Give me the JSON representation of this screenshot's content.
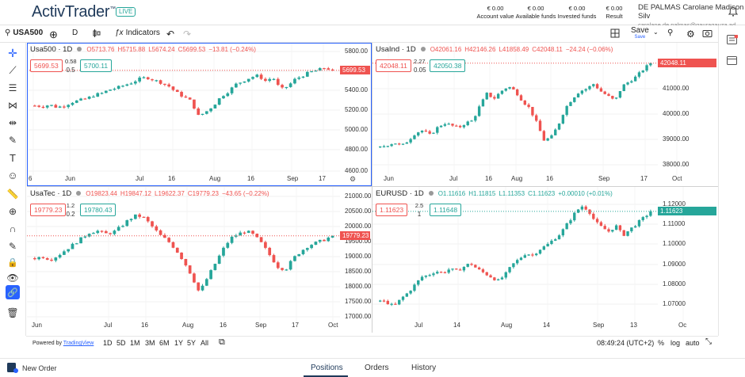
{
  "header": {
    "logo": "ActivTrader",
    "tm": "™",
    "live": "LIVE",
    "stats": [
      {
        "value": "€ 0.00",
        "label": "Account value"
      },
      {
        "value": "€ 0.00",
        "label": "Available funds"
      },
      {
        "value": "€ 0.00",
        "label": "Invested funds"
      },
      {
        "value": "€ 0.00",
        "label": "Result"
      }
    ],
    "user_name": "DE PALMAS Carolane Madison Silv",
    "user_email": "carolane.de.palmas@gauragauza.ad"
  },
  "toolbar": {
    "symbol": "USA500",
    "interval": "D",
    "indicators": "Indicators",
    "save": "Save",
    "save_sub": "Save"
  },
  "panels": [
    {
      "name": "Usa500 · 1D",
      "o": "O5713.76",
      "h": "H5715.88",
      "l": "L5674.24",
      "c": "C5699.53",
      "chg": "−13.81 (−0.24%)",
      "chg_color": "#ef5350",
      "bid": "5699.53",
      "spread_top": "0.58",
      "spread_bot": "0.5",
      "ask": "5700.11",
      "last": "5699.53",
      "last_color": "#ef5350",
      "yticks": [
        "5800.00",
        "5600.00",
        "5400.00",
        "5200.00",
        "5000.00",
        "4800.00",
        "4600.00"
      ],
      "xticks": [
        "Jun",
        "Jul",
        "16",
        "Aug",
        "16",
        "Sep",
        "17"
      ],
      "partial": "6"
    },
    {
      "name": "UsaInd · 1D",
      "o": "O42061.16",
      "h": "H42146.26",
      "l": "L41858.49",
      "c": "C42048.11",
      "chg": "−24.24 (−0.06%)",
      "chg_color": "#ef5350",
      "bid": "42048.11",
      "spread_top": "2.27",
      "spread_bot": "0.05",
      "ask": "42050.38",
      "last": "42048.11",
      "last_color": "#ef5350",
      "yticks": [
        "41000.00",
        "40000.00",
        "39000.00",
        "38000.00"
      ],
      "xticks": [
        "Jun",
        "Jul",
        "16",
        "Aug",
        "16",
        "Sep",
        "17",
        "Oct"
      ]
    },
    {
      "name": "UsaTec · 1D",
      "o": "O19823.44",
      "h": "H19847.12",
      "l": "L19622.37",
      "c": "C19779.23",
      "chg": "−43.65 (−0.22%)",
      "chg_color": "#ef5350",
      "bid": "19779.23",
      "spread_top": "1.2",
      "spread_bot": "0.2",
      "ask": "19780.43",
      "last": "19779.23",
      "last_color": "#ef5350",
      "yticks": [
        "21000.00",
        "20500.00",
        "20000.00",
        "19500.00",
        "19000.00",
        "18500.00",
        "18000.00",
        "17500.00",
        "17000.00"
      ],
      "xticks": [
        "Jun",
        "Jul",
        "16",
        "Aug",
        "16",
        "Sep",
        "17",
        "Oct"
      ]
    },
    {
      "name": "EURUSD · 1D",
      "o": "O1.11616",
      "h": "H1.11815",
      "l": "L1.11353",
      "c": "C1.11623",
      "chg": "+0.00010 (+0.01%)",
      "chg_color": "#26a69a",
      "bid": "1.11623",
      "spread_top": "2.5",
      "spread_bot": "1",
      "ask": "1.11648",
      "last": "1.11623",
      "last_color": "#26a69a",
      "yticks": [
        "1.12000",
        "1.11000",
        "1.10000",
        "1.09000",
        "1.08000",
        "1.07000"
      ],
      "xticks": [
        "Jul",
        "14",
        "Aug",
        "14",
        "Sep",
        "13",
        "Oc"
      ]
    }
  ],
  "chart_data": [
    {
      "type": "candlestick",
      "title": "Usa500 · 1D",
      "y_ticks": [
        5800,
        5600,
        5400,
        5200,
        5000,
        4800,
        4600
      ],
      "ylim": [
        4550,
        5850
      ],
      "last": 5699.53,
      "x_ticks": [
        "Jun",
        "Jul",
        "16",
        "Aug",
        "16",
        "Sep",
        "17"
      ],
      "close_path": [
        5300,
        5290,
        5310,
        5280,
        5300,
        5340,
        5360,
        5380,
        5420,
        5440,
        5480,
        5500,
        5530,
        5560,
        5600,
        5620,
        5590,
        5560,
        5520,
        5450,
        5400,
        5350,
        5180,
        5230,
        5300,
        5400,
        5460,
        5540,
        5580,
        5620,
        5640,
        5580,
        5620,
        5480,
        5520,
        5600,
        5640,
        5680,
        5700,
        5730,
        5700
      ]
    },
    {
      "type": "candlestick",
      "title": "UsaInd · 1D",
      "y_ticks": [
        41000,
        40000,
        39000,
        38000
      ],
      "ylim": [
        37600,
        42300
      ],
      "last": 42048.11,
      "x_ticks": [
        "Jun",
        "Jul",
        "16",
        "Aug",
        "16",
        "Sep",
        "17",
        "Oct"
      ],
      "close_path": [
        38600,
        38700,
        38800,
        38650,
        38900,
        39200,
        39300,
        39100,
        39400,
        39600,
        39500,
        39400,
        39600,
        39700,
        40300,
        40800,
        40600,
        40900,
        41100,
        40900,
        40500,
        40200,
        39600,
        38900,
        39000,
        39500,
        40200,
        40600,
        40900,
        41000,
        41200,
        40900,
        40700,
        40500,
        41100,
        41300,
        41500,
        41800,
        42050
      ]
    },
    {
      "type": "candlestick",
      "title": "UsaTec · 1D",
      "y_ticks": [
        21000,
        20500,
        20000,
        19500,
        19000,
        18500,
        18000,
        17500,
        17000
      ],
      "ylim": [
        16900,
        21100
      ],
      "last": 19779.23,
      "x_ticks": [
        "Jun",
        "Jul",
        "16",
        "Aug",
        "16",
        "Sep",
        "17",
        "Oct"
      ],
      "close_path": [
        19000,
        19050,
        18950,
        19100,
        19300,
        19500,
        19700,
        19900,
        19950,
        19850,
        19900,
        20100,
        20350,
        20500,
        20400,
        20100,
        19800,
        19600,
        19300,
        18900,
        18400,
        17800,
        18300,
        18800,
        19300,
        19700,
        19850,
        19950,
        19800,
        19500,
        19100,
        18700,
        18600,
        19000,
        19250,
        19450,
        19550,
        19650,
        19780
      ]
    },
    {
      "type": "candlestick",
      "title": "EURUSD · 1D",
      "y_ticks": [
        1.12,
        1.11,
        1.1,
        1.09,
        1.08,
        1.07
      ],
      "ylim": [
        1.062,
        1.123
      ],
      "last": 1.11623,
      "x_ticks": [
        "Jul",
        "14",
        "Aug",
        "14",
        "Sep",
        "13",
        "Oc"
      ],
      "close_path": [
        1.071,
        1.07,
        1.068,
        1.072,
        1.075,
        1.079,
        1.083,
        1.084,
        1.086,
        1.085,
        1.087,
        1.086,
        1.088,
        1.09,
        1.087,
        1.085,
        1.083,
        1.081,
        1.084,
        1.089,
        1.092,
        1.095,
        1.094,
        1.097,
        1.099,
        1.102,
        1.105,
        1.11,
        1.115,
        1.119,
        1.117,
        1.111,
        1.108,
        1.106,
        1.109,
        1.104,
        1.107,
        1.11,
        1.113,
        1.116
      ]
    }
  ],
  "bottombar": {
    "powered": "Powered by",
    "tv": "TradingView",
    "ranges": [
      "1D",
      "5D",
      "1M",
      "3M",
      "6M",
      "1Y",
      "5Y",
      "All"
    ],
    "time": "08:49:24 (UTC+2)",
    "pct": "%",
    "log": "log",
    "auto": "auto"
  },
  "footer": {
    "new_order": "New Order",
    "tabs": [
      "Positions",
      "Orders",
      "History"
    ]
  }
}
